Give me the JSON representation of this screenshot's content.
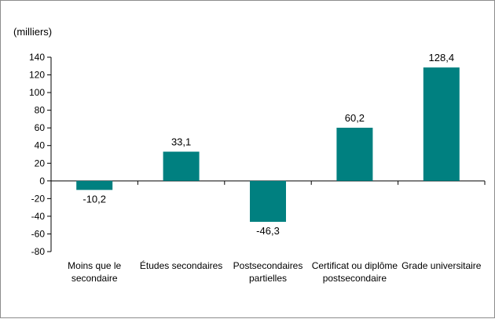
{
  "chart_data": {
    "type": "bar",
    "unit_label": "(milliers)",
    "categories": [
      [
        "Moins que le",
        "secondaire"
      ],
      [
        "Études secondaires"
      ],
      [
        "Postsecondaires",
        "partielles"
      ],
      [
        "Certificat ou diplôme",
        "postsecondaire"
      ],
      [
        "Grade universitaire"
      ]
    ],
    "values": [
      -10.2,
      33.1,
      -46.3,
      60.2,
      128.4
    ],
    "data_labels": [
      "-10,2",
      "33,1",
      "-46,3",
      "60,2",
      "128,4"
    ],
    "yticks": [
      140,
      120,
      100,
      80,
      60,
      40,
      20,
      0,
      -20,
      -40,
      -60,
      -80
    ],
    "ylim": [
      -80,
      140
    ],
    "bar_color": "#008080",
    "grid": false,
    "legend": "none"
  }
}
